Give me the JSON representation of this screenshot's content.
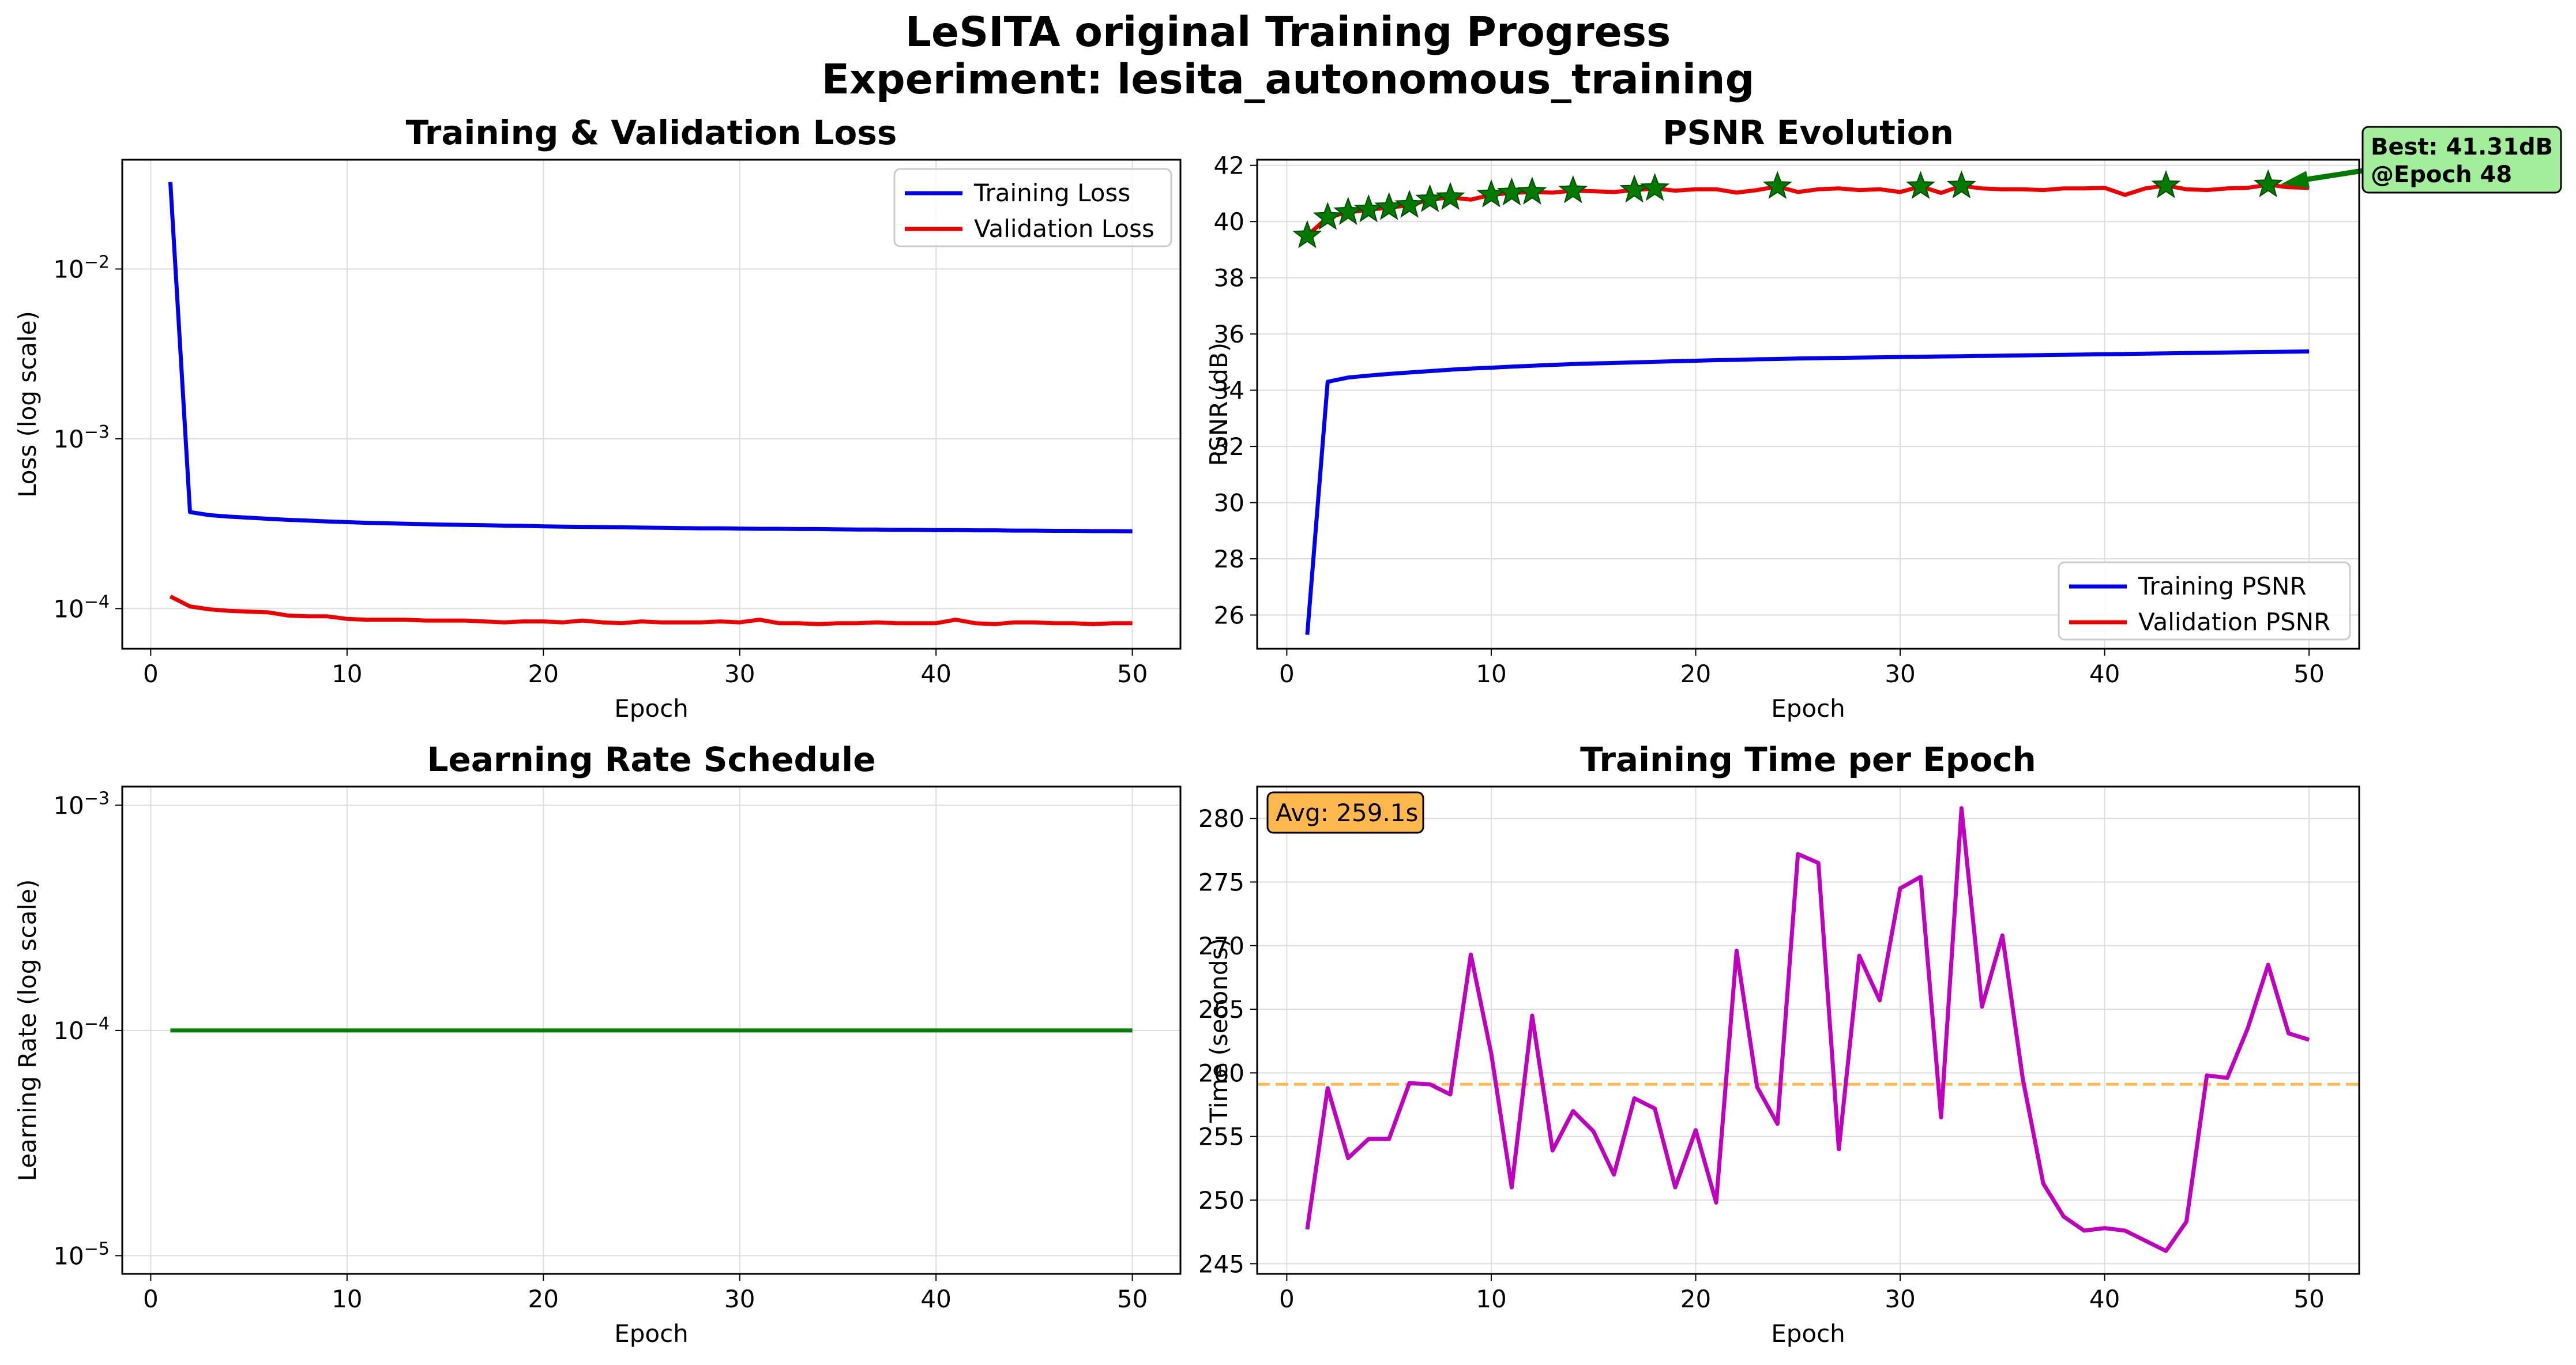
{
  "figure": {
    "title_line1": "LeSITA original Training Progress",
    "title_line2": "Experiment: lesita_autonomous_training"
  },
  "chart_data": [
    {
      "type": "line",
      "title": "Training & Validation Loss",
      "xlabel": "Epoch",
      "ylabel": "Loss (log scale)",
      "yscale": "log",
      "xlim": [
        -1.45,
        52.45
      ],
      "ylim": [
        5.8e-05,
        0.044
      ],
      "xticks": [
        "0",
        "10",
        "20",
        "30",
        "40",
        "50"
      ],
      "yticks": [
        "10^-4",
        "10^-3",
        "10^-2"
      ],
      "grid": true,
      "legend": "top-right",
      "x": [
        1,
        2,
        3,
        4,
        5,
        6,
        7,
        8,
        9,
        10,
        11,
        12,
        13,
        14,
        15,
        16,
        17,
        18,
        19,
        20,
        21,
        22,
        23,
        24,
        25,
        26,
        27,
        28,
        29,
        30,
        31,
        32,
        33,
        34,
        35,
        36,
        37,
        38,
        39,
        40,
        41,
        42,
        43,
        44,
        45,
        46,
        47,
        48,
        49,
        50
      ],
      "series": [
        {
          "name": "Training Loss",
          "color": "#0000ee",
          "values": [
            0.0325,
            0.00037,
            0.000355,
            0.000348,
            0.000343,
            0.000338,
            0.000333,
            0.00033,
            0.000326,
            0.000323,
            0.00032,
            0.000318,
            0.000316,
            0.000314,
            0.000312,
            0.000311,
            0.00031,
            0.000308,
            0.000307,
            0.000305,
            0.000304,
            0.000303,
            0.000302,
            0.000301,
            0.0003,
            0.000299,
            0.000298,
            0.000297,
            0.000297,
            0.000296,
            0.000295,
            0.000295,
            0.000294,
            0.000294,
            0.000293,
            0.000292,
            0.000292,
            0.000291,
            0.000291,
            0.00029,
            0.00029,
            0.000289,
            0.000289,
            0.000288,
            0.000288,
            0.000287,
            0.000287,
            0.000286,
            0.000286,
            0.000285
          ]
        },
        {
          "name": "Validation Loss",
          "color": "#ee0000",
          "values": [
            0.000118,
            0.000103,
            9.9e-05,
            9.7e-05,
            9.6e-05,
            9.5e-05,
            9.1e-05,
            9e-05,
            9e-05,
            8.7e-05,
            8.6e-05,
            8.6e-05,
            8.6e-05,
            8.5e-05,
            8.5e-05,
            8.5e-05,
            8.4e-05,
            8.3e-05,
            8.4e-05,
            8.4e-05,
            8.3e-05,
            8.5e-05,
            8.3e-05,
            8.2e-05,
            8.4e-05,
            8.3e-05,
            8.3e-05,
            8.3e-05,
            8.4e-05,
            8.3e-05,
            8.6e-05,
            8.2e-05,
            8.2e-05,
            8.1e-05,
            8.2e-05,
            8.2e-05,
            8.3e-05,
            8.2e-05,
            8.2e-05,
            8.2e-05,
            8.6e-05,
            8.2e-05,
            8.1e-05,
            8.3e-05,
            8.3e-05,
            8.2e-05,
            8.2e-05,
            8.1e-05,
            8.2e-05,
            8.2e-05
          ]
        }
      ]
    },
    {
      "type": "line",
      "title": "PSNR Evolution",
      "xlabel": "Epoch",
      "ylabel": "PSNR (dB)",
      "xlim": [
        -1.45,
        52.45
      ],
      "ylim": [
        24.8,
        42.2
      ],
      "xticks": [
        "0",
        "10",
        "20",
        "30",
        "40",
        "50"
      ],
      "yticks": [
        "26",
        "28",
        "30",
        "32",
        "34",
        "36",
        "38",
        "40",
        "42"
      ],
      "grid": true,
      "legend": "bottom-right",
      "x": [
        1,
        2,
        3,
        4,
        5,
        6,
        7,
        8,
        9,
        10,
        11,
        12,
        13,
        14,
        15,
        16,
        17,
        18,
        19,
        20,
        21,
        22,
        23,
        24,
        25,
        26,
        27,
        28,
        29,
        30,
        31,
        32,
        33,
        34,
        35,
        36,
        37,
        38,
        39,
        40,
        41,
        42,
        43,
        44,
        45,
        46,
        47,
        48,
        49,
        50
      ],
      "series": [
        {
          "name": "Training PSNR",
          "color": "#0000ee",
          "values": [
            25.3,
            34.3,
            34.45,
            34.52,
            34.58,
            34.63,
            34.68,
            34.73,
            34.77,
            34.8,
            34.84,
            34.87,
            34.9,
            34.93,
            34.95,
            34.97,
            34.99,
            35.01,
            35.03,
            35.05,
            35.07,
            35.08,
            35.1,
            35.11,
            35.13,
            35.14,
            35.15,
            35.16,
            35.17,
            35.18,
            35.19,
            35.2,
            35.21,
            35.22,
            35.23,
            35.24,
            35.25,
            35.26,
            35.27,
            35.28,
            35.29,
            35.3,
            35.31,
            35.32,
            35.33,
            35.34,
            35.35,
            35.36,
            35.37,
            35.38
          ]
        },
        {
          "name": "Validation PSNR",
          "color": "#ee0000",
          "values": [
            39.5,
            40.15,
            40.33,
            40.42,
            40.5,
            40.58,
            40.78,
            40.86,
            40.78,
            40.95,
            41.02,
            41.05,
            41.03,
            41.1,
            41.08,
            41.05,
            41.12,
            41.18,
            41.1,
            41.15,
            41.15,
            41.03,
            41.12,
            41.25,
            41.05,
            41.15,
            41.18,
            41.12,
            41.15,
            41.05,
            41.25,
            41.02,
            41.27,
            41.18,
            41.15,
            41.15,
            41.12,
            41.18,
            41.18,
            41.2,
            40.95,
            41.18,
            41.28,
            41.15,
            41.12,
            41.18,
            41.2,
            41.31,
            41.22,
            41.2
          ]
        }
      ],
      "best_markers_x": [
        1,
        2,
        3,
        4,
        5,
        6,
        7,
        8,
        10,
        11,
        12,
        14,
        17,
        18,
        24,
        31,
        33,
        43,
        48
      ],
      "annotation": {
        "text_line1": "Best: 41.31dB",
        "text_line2": "@Epoch 48",
        "x": 48,
        "y": 41.31
      }
    },
    {
      "type": "line",
      "title": "Learning Rate Schedule",
      "xlabel": "Epoch",
      "ylabel": "Learning Rate (log scale)",
      "yscale": "log",
      "xlim": [
        -1.45,
        52.45
      ],
      "ylim": [
        8.3e-06,
        0.00121
      ],
      "xticks": [
        "0",
        "10",
        "20",
        "30",
        "40",
        "50"
      ],
      "yticks": [
        "10^-5",
        "10^-4",
        "10^-3"
      ],
      "grid": true,
      "x": [
        1,
        50
      ],
      "series": [
        {
          "name": "",
          "color": "#008000",
          "values": [
            0.0001,
            0.0001
          ]
        }
      ]
    },
    {
      "type": "line",
      "title": "Training Time per Epoch",
      "xlabel": "Epoch",
      "ylabel": "Time (seconds)",
      "xlim": [
        -1.45,
        52.45
      ],
      "ylim": [
        244.2,
        282.5
      ],
      "xticks": [
        "0",
        "10",
        "20",
        "30",
        "40",
        "50"
      ],
      "yticks": [
        "245",
        "250",
        "255",
        "260",
        "265",
        "270",
        "275",
        "280"
      ],
      "grid": true,
      "x": [
        1,
        2,
        3,
        4,
        5,
        6,
        7,
        8,
        9,
        10,
        11,
        12,
        13,
        14,
        15,
        16,
        17,
        18,
        19,
        20,
        21,
        22,
        23,
        24,
        25,
        26,
        27,
        28,
        29,
        30,
        31,
        32,
        33,
        34,
        35,
        36,
        37,
        38,
        39,
        40,
        41,
        42,
        43,
        44,
        45,
        46,
        47,
        48,
        49,
        50
      ],
      "series": [
        {
          "name": "",
          "color": "#bf00bf",
          "values": [
            247.7,
            258.8,
            253.3,
            254.8,
            254.8,
            259.2,
            259.1,
            258.3,
            269.3,
            261.5,
            251.0,
            264.5,
            253.9,
            257.0,
            255.4,
            252.0,
            258.0,
            257.2,
            251.0,
            255.5,
            249.8,
            269.6,
            258.9,
            256.0,
            277.2,
            276.5,
            254.0,
            269.2,
            265.7,
            274.5,
            275.4,
            256.5,
            280.8,
            265.2,
            270.8,
            259.5,
            251.3,
            248.7,
            247.6,
            247.8,
            247.6,
            246.8,
            246.0,
            248.3,
            259.8,
            259.6,
            263.5,
            268.5,
            263.1,
            262.6
          ]
        }
      ],
      "average": {
        "value": 259.1,
        "label": "Avg: 259.1s",
        "color": "#ffb84d"
      }
    }
  ]
}
